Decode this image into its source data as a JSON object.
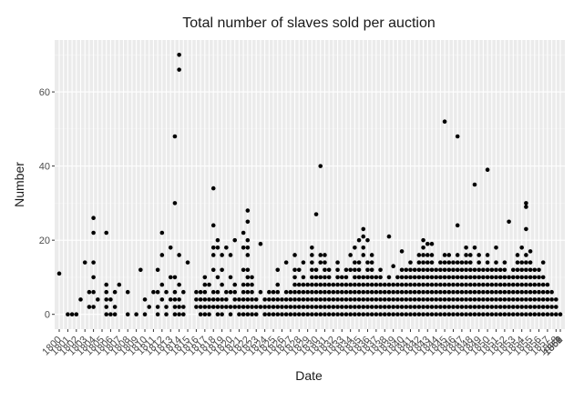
{
  "chart_data": {
    "type": "scatter",
    "title": "Total number of slaves sold per auction",
    "xlabel": "Date",
    "ylabel": "Number",
    "ylim": [
      -4,
      74
    ],
    "y_ticks": [
      0,
      20,
      40,
      60
    ],
    "grid": true,
    "legend": "none",
    "point_color": "#000000",
    "panel_color": "#ebebeb",
    "x_ticks": [
      "1800",
      "1801",
      "1802",
      "1803",
      "1804",
      "1805",
      "1806",
      "1807",
      "1808",
      "1809",
      "1810",
      "1811",
      "1812",
      "1813",
      "1814",
      "1815",
      "1816",
      "1817",
      "1818",
      "1819",
      "1820",
      "1821",
      "1822",
      "1823",
      "1824",
      "1825",
      "1826",
      "1827",
      "1828",
      "1829",
      "1830",
      "1831",
      "1832",
      "1833",
      "1834",
      "1835",
      "1836",
      "1837",
      "1838",
      "1839",
      "1840",
      "1841",
      "1842",
      "1843",
      "1844",
      "1845",
      "1846",
      "1847",
      "1848",
      "1849",
      "1850",
      "1851",
      "1852",
      "1853",
      "1854",
      "1855",
      "1856",
      "1857",
      "1858",
      "1859",
      "1860",
      "1861",
      "1862",
      "1863"
    ],
    "x_data_step": 0.5,
    "x_start": 0,
    "columns": [
      [
        11
      ],
      [],
      [
        0
      ],
      [
        0
      ],
      [
        0
      ],
      [
        4
      ],
      [
        14
      ],
      [
        2,
        6
      ],
      [
        2,
        6,
        10,
        14,
        22,
        26
      ],
      [
        4
      ],
      [],
      [
        0,
        2,
        4,
        6,
        8,
        22
      ],
      [
        0,
        4
      ],
      [
        0,
        2,
        6
      ],
      [
        8
      ],
      [],
      [
        0,
        6
      ],
      [],
      [
        0
      ],
      [
        12
      ],
      [
        0,
        4
      ],
      [
        2
      ],
      [
        6
      ],
      [
        0,
        2,
        6,
        12
      ],
      [
        4,
        8,
        16,
        22
      ],
      [
        0,
        2,
        6
      ],
      [
        4,
        10,
        18
      ],
      [
        0,
        2,
        4,
        6,
        10,
        30,
        48
      ],
      [
        0,
        2,
        4,
        8,
        16,
        66,
        70
      ],
      [
        0,
        2,
        6
      ],
      [
        14
      ],
      [],
      [
        2,
        4,
        6
      ],
      [
        0,
        2,
        4,
        6
      ],
      [
        0,
        2,
        4,
        6,
        8,
        10
      ],
      [
        0,
        2,
        4,
        8
      ],
      [
        2,
        4,
        6,
        12,
        16,
        18,
        24,
        34
      ],
      [
        0,
        2,
        4,
        6,
        10,
        18,
        20
      ],
      [
        0,
        2,
        4,
        8,
        12,
        16
      ],
      [
        2,
        4,
        6,
        18
      ],
      [
        0,
        2,
        6,
        10,
        16
      ],
      [
        2,
        4,
        6,
        8,
        20
      ],
      [
        0,
        2,
        4
      ],
      [
        0,
        2,
        4,
        6,
        8,
        12,
        18,
        22
      ],
      [
        0,
        2,
        4,
        6,
        8,
        10,
        12,
        16,
        18,
        20,
        25,
        28
      ],
      [
        0,
        2,
        4,
        6,
        8,
        10
      ],
      [
        0,
        2,
        4
      ],
      [
        2,
        6,
        19
      ],
      [
        0,
        2,
        4
      ],
      [
        0,
        2,
        4,
        6
      ],
      [
        0,
        2,
        4,
        6
      ],
      [
        0,
        2,
        4,
        6,
        8,
        12
      ],
      [
        0,
        2,
        4
      ],
      [
        0,
        2,
        4,
        6,
        14
      ],
      [
        0,
        2,
        4,
        6
      ],
      [
        0,
        2,
        4,
        6,
        8,
        10,
        12,
        16
      ],
      [
        0,
        2,
        4,
        6,
        8,
        12
      ],
      [
        0,
        2,
        4,
        6,
        8,
        10,
        14
      ],
      [
        0,
        2,
        4,
        6,
        8
      ],
      [
        0,
        2,
        4,
        6,
        8,
        10,
        12,
        14,
        16,
        18
      ],
      [
        0,
        2,
        4,
        6,
        8,
        10,
        12,
        27
      ],
      [
        0,
        2,
        4,
        6,
        8,
        10,
        14,
        16,
        40
      ],
      [
        0,
        2,
        4,
        6,
        8,
        10,
        12,
        14,
        16
      ],
      [
        0,
        2,
        4,
        6,
        8,
        10,
        12
      ],
      [
        0,
        2,
        4,
        6,
        8
      ],
      [
        0,
        2,
        4,
        6,
        8,
        10,
        12,
        14
      ],
      [
        0,
        2,
        4,
        6,
        8,
        10
      ],
      [
        0,
        2,
        4,
        6,
        8,
        10,
        12
      ],
      [
        0,
        2,
        4,
        6,
        8,
        12,
        16
      ],
      [
        0,
        2,
        4,
        6,
        8,
        10,
        12,
        14,
        18
      ],
      [
        0,
        2,
        4,
        6,
        8,
        10,
        12,
        14,
        20
      ],
      [
        0,
        2,
        4,
        6,
        8,
        10,
        16,
        18,
        21,
        23
      ],
      [
        0,
        2,
        4,
        6,
        8,
        10,
        12,
        14,
        20
      ],
      [
        0,
        2,
        4,
        6,
        8,
        10,
        12,
        14,
        16
      ],
      [
        0,
        2,
        4,
        6,
        8,
        10
      ],
      [
        0,
        2,
        4,
        6,
        8,
        10,
        12
      ],
      [
        0,
        2,
        4,
        6,
        8
      ],
      [
        0,
        2,
        4,
        6,
        8,
        10,
        21
      ],
      [
        0,
        2,
        4,
        6,
        8,
        13
      ],
      [
        0,
        2,
        4,
        6,
        8,
        10
      ],
      [
        0,
        2,
        4,
        6,
        8,
        10,
        12,
        17
      ],
      [
        0,
        2,
        4,
        6,
        8,
        10,
        12
      ],
      [
        0,
        2,
        4,
        6,
        8,
        10,
        12,
        14
      ],
      [
        0,
        2,
        4,
        6,
        8,
        10,
        12
      ],
      [
        0,
        2,
        4,
        6,
        8,
        10,
        12,
        14,
        16
      ],
      [
        0,
        2,
        4,
        6,
        8,
        10,
        12,
        14,
        16,
        18,
        20
      ],
      [
        0,
        2,
        4,
        6,
        8,
        10,
        12,
        14,
        16,
        19
      ],
      [
        0,
        2,
        4,
        6,
        8,
        10,
        12,
        14,
        16,
        19
      ],
      [
        0,
        2,
        4,
        6,
        8,
        10,
        12
      ],
      [
        0,
        2,
        4,
        6,
        8,
        10,
        12,
        14
      ],
      [
        0,
        2,
        4,
        6,
        8,
        10,
        12,
        14,
        16,
        52
      ],
      [
        0,
        2,
        4,
        6,
        8,
        10,
        12,
        14,
        16
      ],
      [
        0,
        2,
        4,
        6,
        8,
        10,
        12,
        14
      ],
      [
        0,
        2,
        4,
        6,
        8,
        10,
        12,
        14,
        16,
        24,
        48
      ],
      [
        0,
        2,
        4,
        6,
        8,
        10,
        12,
        14
      ],
      [
        0,
        2,
        4,
        6,
        8,
        10,
        12,
        14,
        16,
        18
      ],
      [
        0,
        2,
        4,
        6,
        8,
        10,
        12,
        14,
        16
      ],
      [
        0,
        2,
        4,
        6,
        8,
        10,
        12,
        18,
        35
      ],
      [
        0,
        2,
        4,
        6,
        8,
        10,
        12,
        14,
        16
      ],
      [
        0,
        2,
        4,
        6,
        8,
        10,
        12
      ],
      [
        0,
        2,
        4,
        6,
        8,
        10,
        12,
        14,
        16,
        39
      ],
      [
        0,
        2,
        4,
        6,
        8,
        10,
        12
      ],
      [
        0,
        2,
        4,
        6,
        8,
        10,
        12,
        14,
        18
      ],
      [
        0,
        2,
        4,
        6,
        8,
        10,
        12
      ],
      [
        0,
        2,
        4,
        6,
        8,
        10,
        12,
        14
      ],
      [
        0,
        2,
        4,
        6,
        8,
        10,
        25
      ],
      [
        0,
        2,
        4,
        6,
        8,
        10,
        12
      ],
      [
        0,
        2,
        4,
        6,
        8,
        10,
        12,
        14,
        16
      ],
      [
        0,
        2,
        4,
        6,
        8,
        10,
        12,
        14,
        18
      ],
      [
        0,
        2,
        4,
        6,
        8,
        10,
        12,
        14,
        16,
        23,
        29,
        30
      ],
      [
        0,
        2,
        4,
        6,
        8,
        10,
        12,
        14,
        17
      ],
      [
        0,
        2,
        4,
        6,
        8,
        10,
        12
      ],
      [
        0,
        2,
        4,
        6,
        8,
        10,
        12
      ],
      [
        0,
        2,
        4,
        6,
        8,
        10,
        14
      ],
      [
        0,
        2,
        4,
        6,
        8
      ],
      [
        0,
        2,
        4,
        6
      ],
      [
        0,
        2,
        4
      ],
      [
        0
      ]
    ]
  }
}
